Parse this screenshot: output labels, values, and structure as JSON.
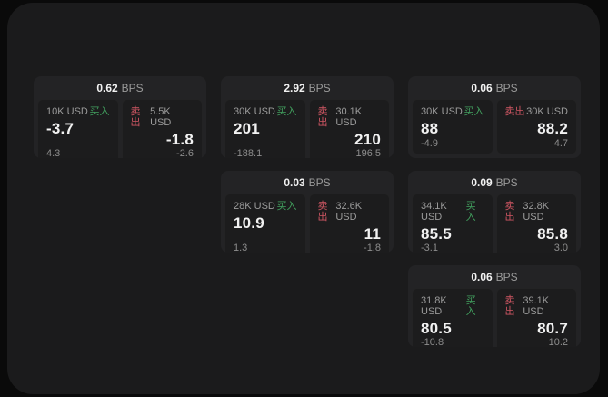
{
  "colors": {
    "page_bg": "#0a0a0a",
    "panel_bg": "#1b1b1c",
    "card_bg": "#232325",
    "tile_bg": "#1c1c1d",
    "buy": "#42a15f",
    "sell": "#cf5663",
    "label": "#9b9b9b",
    "sub": "#8d8d8d",
    "value": "#f2f2f2"
  },
  "labels": {
    "bps": "BPS",
    "buy": "买入",
    "sell": "卖出"
  },
  "cards": [
    {
      "col": 1,
      "row": 1,
      "bps": "0.62",
      "buy": {
        "size": "10K USD",
        "price": "-3.7",
        "sub": "4.3"
      },
      "sell": {
        "size": "5.5K USD",
        "price": "-1.8",
        "sub": "-2.6"
      }
    },
    {
      "col": 2,
      "row": 1,
      "bps": "2.92",
      "buy": {
        "size": "30K USD",
        "price": "201",
        "sub": "-188.1"
      },
      "sell": {
        "size": "30.1K USD",
        "price": "210",
        "sub": "196.5"
      }
    },
    {
      "col": 3,
      "row": 1,
      "bps": "0.06",
      "buy": {
        "size": "30K USD",
        "price": "88",
        "sub": "-4.9"
      },
      "sell": {
        "size": "30K USD",
        "price": "88.2",
        "sub": "4.7"
      }
    },
    {
      "col": 2,
      "row": 2,
      "bps": "0.03",
      "buy": {
        "size": "28K USD",
        "price": "10.9",
        "sub": "1.3"
      },
      "sell": {
        "size": "32.6K USD",
        "price": "11",
        "sub": "-1.8"
      }
    },
    {
      "col": 3,
      "row": 2,
      "bps": "0.09",
      "buy": {
        "size": "34.1K USD",
        "price": "85.5",
        "sub": "-3.1"
      },
      "sell": {
        "size": "32.8K USD",
        "price": "85.8",
        "sub": "3.0"
      }
    },
    {
      "col": 3,
      "row": 3,
      "bps": "0.06",
      "buy": {
        "size": "31.8K USD",
        "price": "80.5",
        "sub": "-10.8"
      },
      "sell": {
        "size": "39.1K USD",
        "price": "80.7",
        "sub": "10.2"
      }
    }
  ]
}
